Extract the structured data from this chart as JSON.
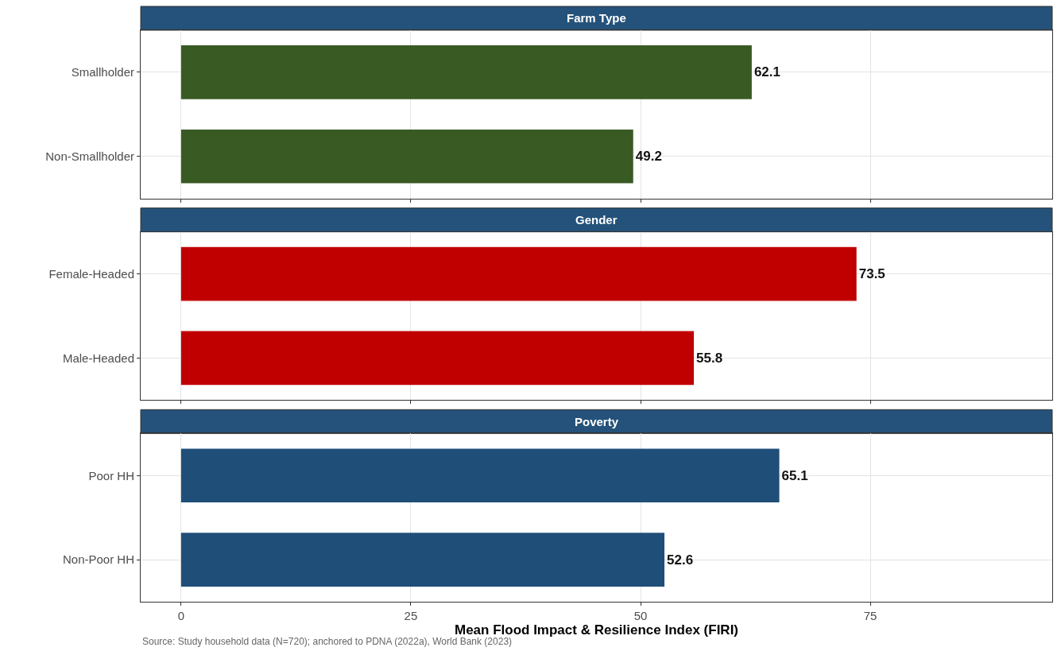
{
  "chart_data": [
    {
      "type": "bar",
      "orientation": "horizontal",
      "title": "Farm Type",
      "categories": [
        "Smallholder",
        "Non-Smallholder"
      ],
      "values": [
        62.1,
        49.2
      ],
      "color": "#3a5a24",
      "xlim": [
        -4.4,
        94.8
      ],
      "xticks": [
        0,
        25,
        50,
        75
      ],
      "grid": true,
      "data_labels": true,
      "tick_labels": "y"
    },
    {
      "type": "bar",
      "orientation": "horizontal",
      "title": "Gender",
      "categories": [
        "Female-Headed",
        "Male-Headed"
      ],
      "values": [
        73.5,
        55.8
      ],
      "color": "#c00000",
      "xlim": [
        -4.4,
        94.8
      ],
      "xticks": [
        0,
        25,
        50,
        75
      ],
      "grid": true,
      "data_labels": true,
      "tick_labels": "y"
    },
    {
      "type": "bar",
      "orientation": "horizontal",
      "title": "Poverty",
      "categories": [
        "Poor HH",
        "Non-Poor HH"
      ],
      "values": [
        65.1,
        52.6
      ],
      "color": "#1f4e79",
      "xlim": [
        -4.4,
        94.8
      ],
      "xticks": [
        0,
        25,
        50,
        75
      ],
      "grid": true,
      "data_labels": true,
      "xlabel": "Mean Flood Impact & Resilience Index (FIRI)",
      "annotations": [
        "Source: Study household data (N=720); anchored to PDNA (2022a), World Bank (2023)"
      ]
    }
  ]
}
